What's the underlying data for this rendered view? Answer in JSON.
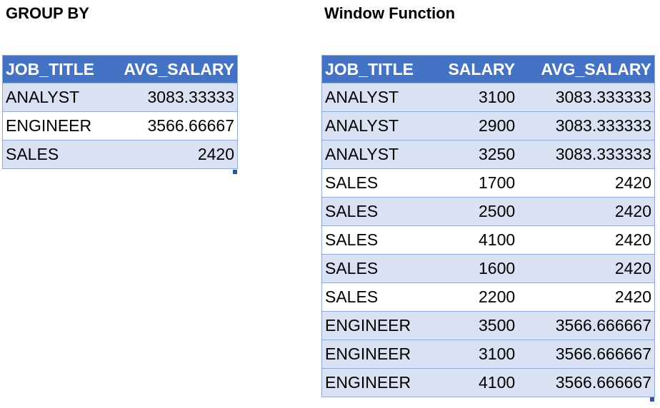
{
  "group_by": {
    "title": "GROUP BY",
    "columns": [
      "JOB_TITLE",
      "AVG_SALARY"
    ],
    "rows": [
      [
        "ANALYST",
        "3083.33333"
      ],
      [
        "ENGINEER",
        "3566.66667"
      ],
      [
        "SALES",
        "2420"
      ]
    ]
  },
  "window_function": {
    "title": "Window Function",
    "columns": [
      "JOB_TITLE",
      "SALARY",
      "AVG_SALARY"
    ],
    "rows": [
      [
        "ANALYST",
        "3100",
        "3083.333333"
      ],
      [
        "ANALYST",
        "2900",
        "3083.333333"
      ],
      [
        "ANALYST",
        "3250",
        "3083.333333"
      ],
      [
        "SALES",
        "1700",
        "2420"
      ],
      [
        "SALES",
        "2500",
        "2420"
      ],
      [
        "SALES",
        "4100",
        "2420"
      ],
      [
        "SALES",
        "1600",
        "2420"
      ],
      [
        "SALES",
        "2200",
        "2420"
      ],
      [
        "ENGINEER",
        "3500",
        "3566.666667"
      ],
      [
        "ENGINEER",
        "3100",
        "3566.666667"
      ],
      [
        "ENGINEER",
        "4100",
        "3566.666667"
      ]
    ]
  },
  "colors": {
    "header_bg": "#4472c4",
    "band_bg": "#d9e1f2",
    "border": "#8ea9db"
  }
}
